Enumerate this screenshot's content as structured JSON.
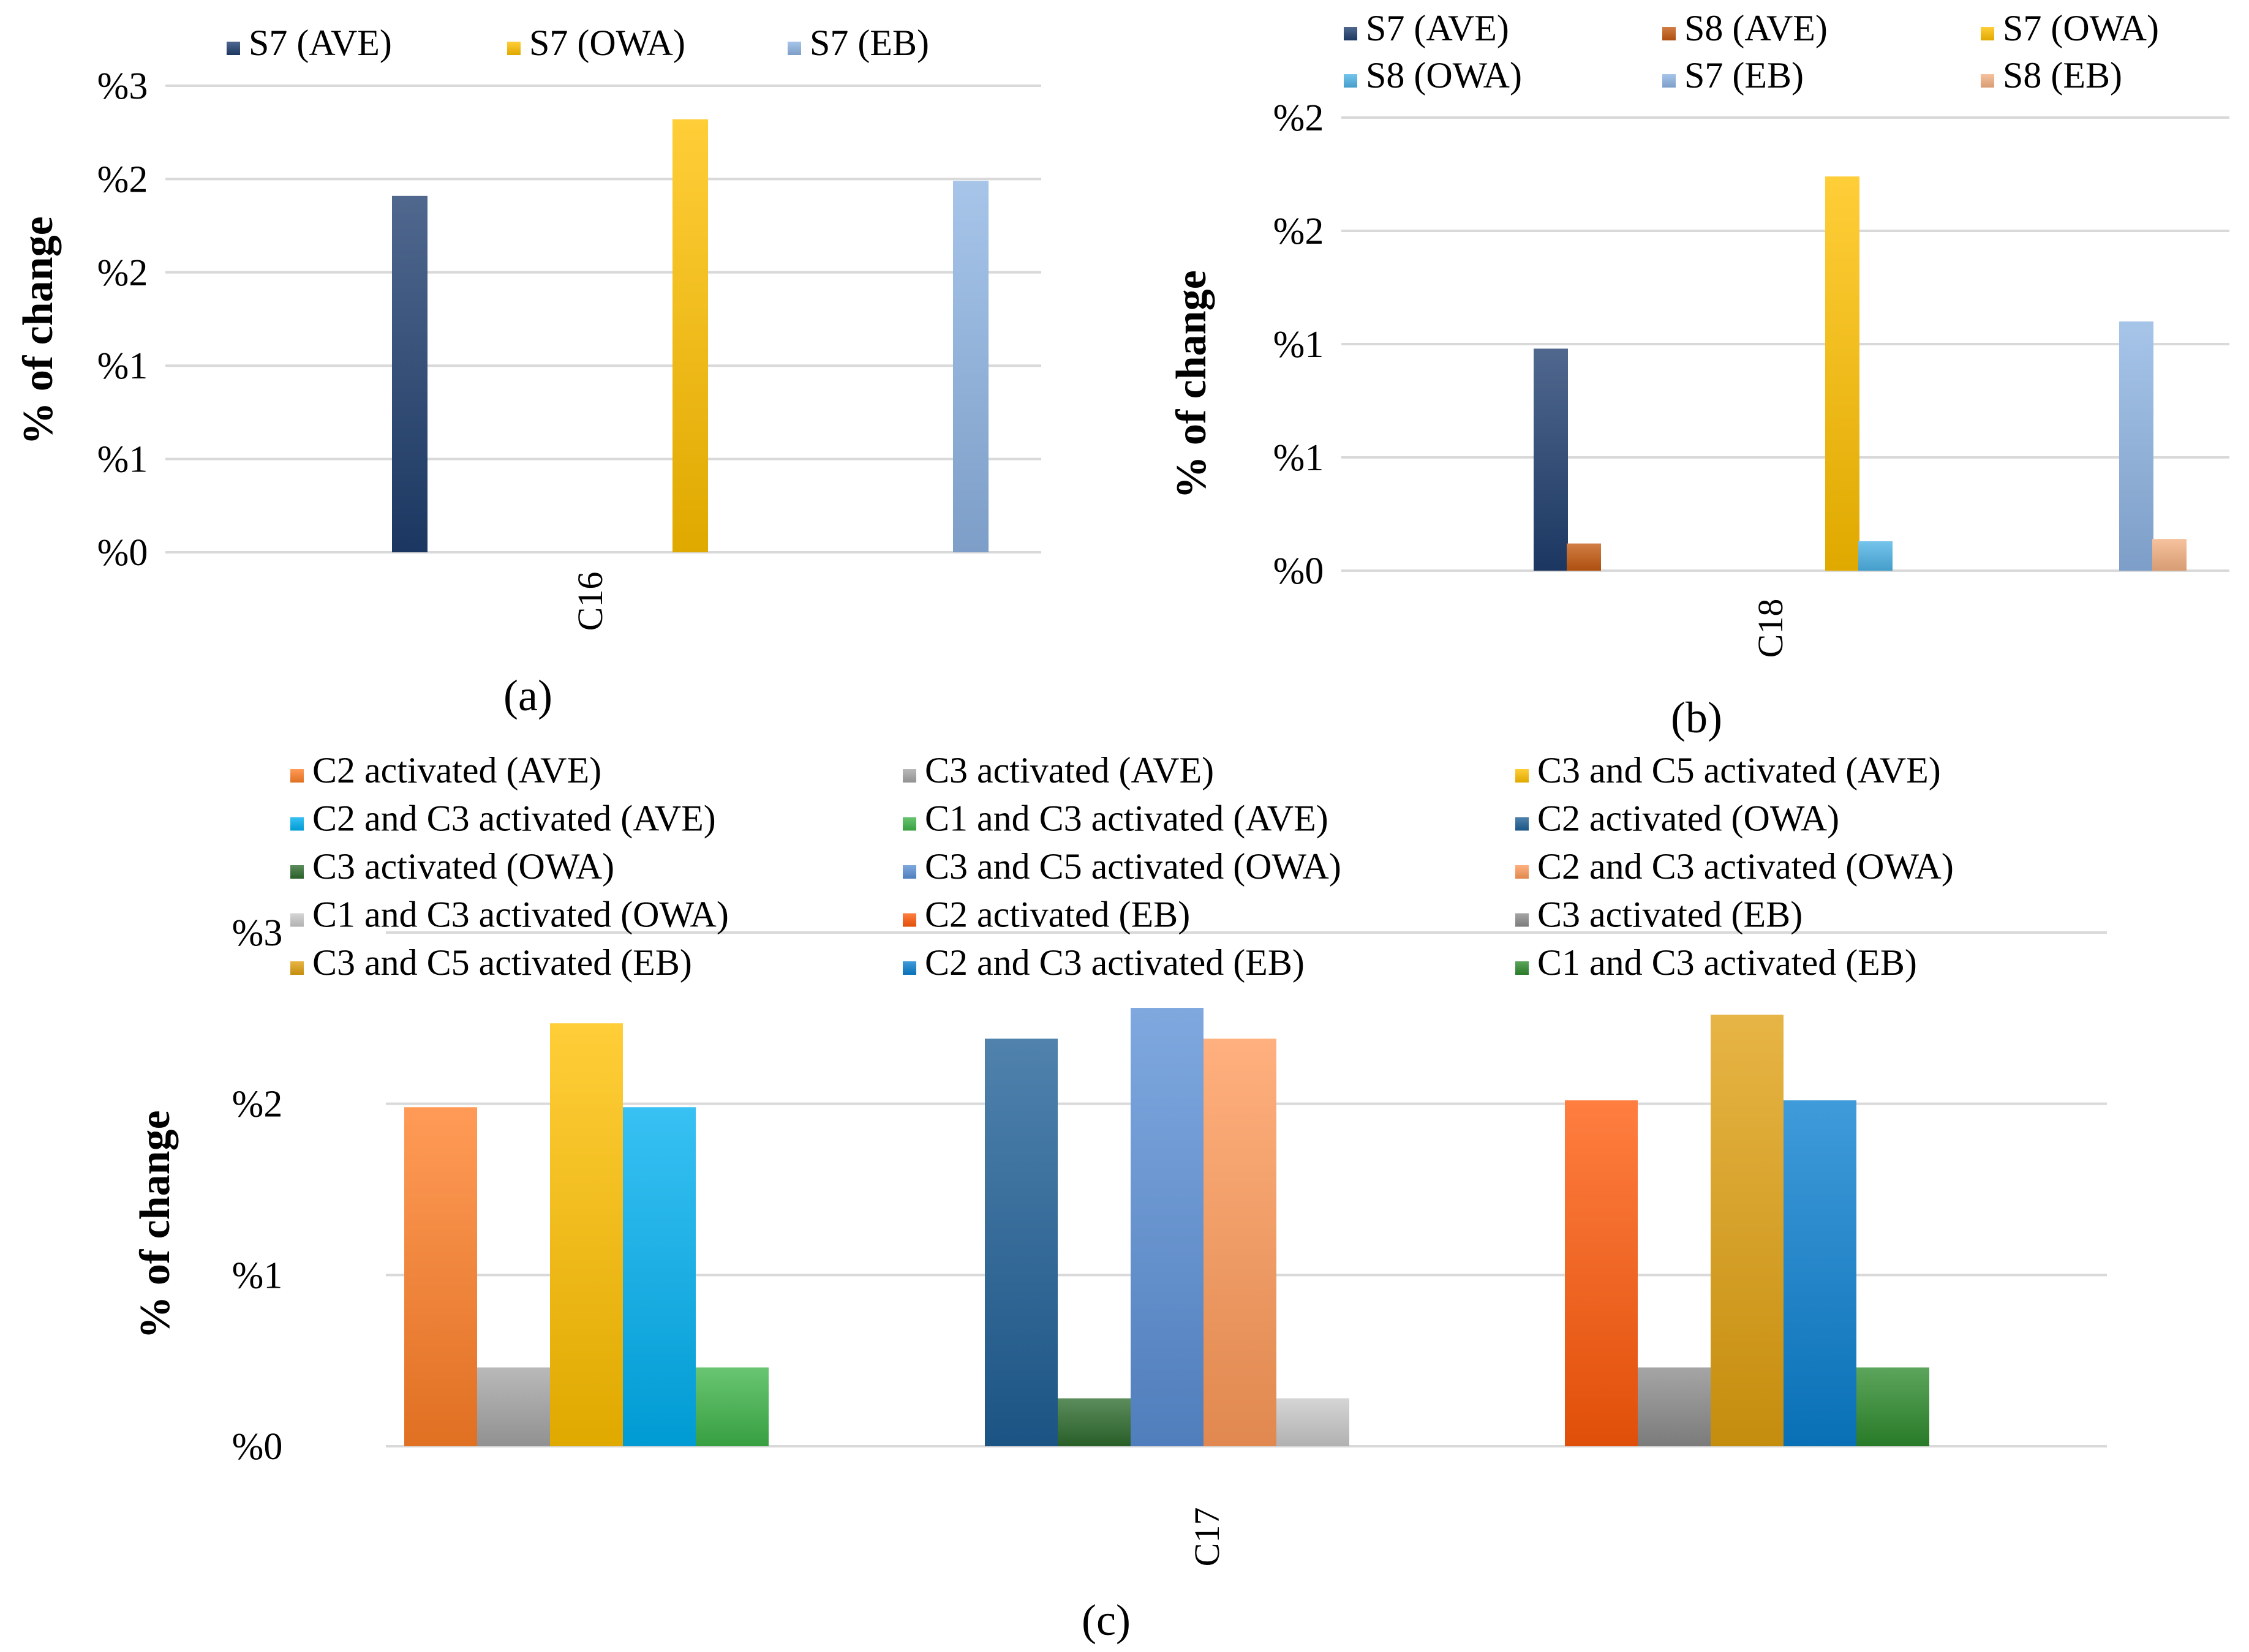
{
  "panels": [
    {
      "id": "a",
      "panel_label": "(a)",
      "ylabel": "% of change",
      "ticks": [
        "%0",
        "%1",
        "%1",
        "%2",
        "%2",
        "%3"
      ],
      "category": "C16",
      "legend": [
        "S7 (AVE)",
        "S7 (OWA)",
        "S7 (EB)"
      ]
    },
    {
      "id": "b",
      "panel_label": "(b)",
      "ylabel": "% of change",
      "ticks": [
        "%0",
        "%1",
        "%1",
        "%2",
        "%2"
      ],
      "category": "C18",
      "legend": [
        "S7 (AVE)",
        "S8 (AVE)",
        "S7 (OWA)",
        "S8 (OWA)",
        "S7 (EB)",
        "S8 (EB)"
      ]
    },
    {
      "id": "c",
      "panel_label": "(c)",
      "ylabel": "% of change",
      "ticks": [
        "%0",
        "%1",
        "%2",
        "%3"
      ],
      "category": "C17",
      "legend": [
        "C2 activated (AVE)",
        "C3 activated (AVE)",
        "C3 and C5 activated (AVE)",
        "C2 and C3 activated (AVE)",
        "C1 and C3 activated (AVE)",
        "C2 activated (OWA)",
        "C3 activated (OWA)",
        "C3 and C5 activated (OWA)",
        "C2 and C3 activated (OWA)",
        "C1 and C3 activated (OWA)",
        "C2 activated (EB)",
        "C3 activated (EB)",
        "C3 and C5 activated (EB)",
        "C2 and C3 activated (EB)",
        "C1 and C3 activated (EB)"
      ]
    }
  ],
  "chart_data": [
    {
      "type": "bar",
      "title": "",
      "panel": "(a)",
      "categories": [
        "C16"
      ],
      "xlabel": "",
      "ylabel": "% of change",
      "ylim": [
        0,
        2.5
      ],
      "series": [
        {
          "name": "S7 (AVE)",
          "values": [
            1.91
          ],
          "color": "#1f3e6e"
        },
        {
          "name": "S7 (OWA)",
          "values": [
            2.32
          ],
          "color": "#ffc000"
        },
        {
          "name": "S7 (EB)",
          "values": [
            1.99
          ],
          "color": "#8eb4e3"
        }
      ]
    },
    {
      "type": "bar",
      "title": "",
      "panel": "(b)",
      "categories": [
        "C18"
      ],
      "xlabel": "",
      "ylabel": "% of change",
      "ylim": [
        0,
        2.0
      ],
      "series": [
        {
          "name": "S7 (AVE)",
          "values": [
            0.98
          ],
          "color": "#1f3e6e"
        },
        {
          "name": "S8 (AVE)",
          "values": [
            0.12
          ],
          "color": "#c55a11"
        },
        {
          "name": "S7 (OWA)",
          "values": [
            1.74
          ],
          "color": "#ffc000"
        },
        {
          "name": "S8 (OWA)",
          "values": [
            0.13
          ],
          "color": "#4eb3e6"
        },
        {
          "name": "S7 (EB)",
          "values": [
            1.1
          ],
          "color": "#8eb4e3"
        },
        {
          "name": "S8 (EB)",
          "values": [
            0.14
          ],
          "color": "#f4b183"
        }
      ]
    },
    {
      "type": "bar",
      "title": "",
      "panel": "(c)",
      "categories": [
        "C17"
      ],
      "xlabel": "",
      "ylabel": "% of change",
      "ylim": [
        0,
        3.0
      ],
      "series": [
        {
          "name": "C2 activated (AVE)",
          "values": [
            1.98
          ],
          "color": "#ff7f27"
        },
        {
          "name": "C3 activated (AVE)",
          "values": [
            0.46
          ],
          "color": "#a5a5a5"
        },
        {
          "name": "C3 and C5 activated (AVE)",
          "values": [
            2.47
          ],
          "color": "#ffc000"
        },
        {
          "name": "C2 and C3 activated (AVE)",
          "values": [
            1.98
          ],
          "color": "#00b0f0"
        },
        {
          "name": "C1 and C3 activated (AVE)",
          "values": [
            0.46
          ],
          "color": "#3fb54a"
        },
        {
          "name": "C2 activated (OWA)",
          "values": [
            2.38
          ],
          "color": "#1f5f96"
        },
        {
          "name": "C3 activated (OWA)",
          "values": [
            0.28
          ],
          "color": "#2e6b2e"
        },
        {
          "name": "C3 and C5 activated (OWA)",
          "values": [
            2.56
          ],
          "color": "#5b8fd6"
        },
        {
          "name": "C2 and C3 activated (OWA)",
          "values": [
            2.38
          ],
          "color": "#ff9a5a"
        },
        {
          "name": "C1 and C3 activated (OWA)",
          "values": [
            0.28
          ],
          "color": "#c9c9c9"
        },
        {
          "name": "C2 activated (EB)",
          "values": [
            2.02
          ],
          "color": "#ff5a0a"
        },
        {
          "name": "C3 activated (EB)",
          "values": [
            0.46
          ],
          "color": "#8c8c8c"
        },
        {
          "name": "C3 and C5 activated (EB)",
          "values": [
            2.52
          ],
          "color": "#e0a010"
        },
        {
          "name": "C2 and C3 activated (EB)",
          "values": [
            2.02
          ],
          "color": "#0a7fcf"
        },
        {
          "name": "C1 and C3 activated (EB)",
          "values": [
            0.46
          ],
          "color": "#2e8b2e"
        }
      ]
    }
  ]
}
